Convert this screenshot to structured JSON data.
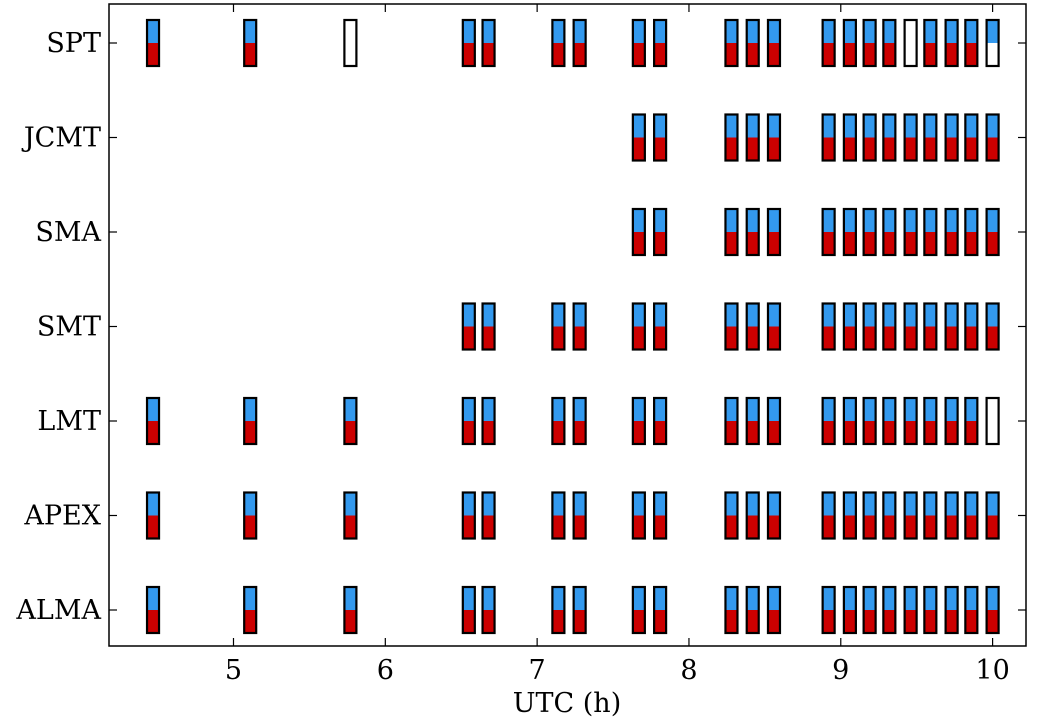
{
  "chart_data": {
    "type": "scan-availability",
    "title": "",
    "xlabel": "UTC (h)",
    "ylabel": "",
    "xlim": [
      4.18,
      10.22
    ],
    "xticks": [
      5,
      6,
      7,
      8,
      9,
      10
    ],
    "stations": [
      "ALMA",
      "APEX",
      "LMT",
      "SMT",
      "SMA",
      "JCMT",
      "SPT"
    ],
    "colors": {
      "upper": "#3399ee",
      "lower": "#cc0000",
      "empty": "#ffffff",
      "border": "#000000"
    },
    "scan_times": [
      4.47,
      5.11,
      5.77,
      6.55,
      6.68,
      7.14,
      7.28,
      7.67,
      7.81,
      8.28,
      8.42,
      8.56,
      8.92,
      9.06,
      9.19,
      9.32,
      9.46,
      9.59,
      9.73,
      9.86,
      10.0
    ],
    "scans": {
      "ALMA": [
        "full",
        "full",
        "full",
        "full",
        "full",
        "full",
        "full",
        "full",
        "full",
        "full",
        "full",
        "full",
        "full",
        "full",
        "full",
        "full",
        "full",
        "full",
        "full",
        "full",
        "full"
      ],
      "APEX": [
        "full",
        "full",
        "full",
        "full",
        "full",
        "full",
        "full",
        "full",
        "full",
        "full",
        "full",
        "full",
        "full",
        "full",
        "full",
        "full",
        "full",
        "full",
        "full",
        "full",
        "full"
      ],
      "LMT": [
        "full",
        "full",
        "full",
        "full",
        "full",
        "full",
        "full",
        "full",
        "full",
        "full",
        "full",
        "full",
        "full",
        "full",
        "full",
        "full",
        "full",
        "full",
        "full",
        "full",
        "empty"
      ],
      "SMT": [
        null,
        null,
        null,
        "full",
        "full",
        "full",
        "full",
        "full",
        "full",
        "full",
        "full",
        "full",
        "full",
        "full",
        "full",
        "full",
        "full",
        "full",
        "full",
        "full",
        "full"
      ],
      "SMA": [
        null,
        null,
        null,
        null,
        null,
        null,
        null,
        "full",
        "full",
        "full",
        "full",
        "full",
        "full",
        "full",
        "full",
        "full",
        "full",
        "full",
        "full",
        "full",
        "full"
      ],
      "JCMT": [
        null,
        null,
        null,
        null,
        null,
        null,
        null,
        "full",
        "full",
        "full",
        "full",
        "full",
        "full",
        "full",
        "full",
        "full",
        "full",
        "full",
        "full",
        "full",
        "full"
      ],
      "SPT": [
        "full",
        "full",
        "empty",
        "full",
        "full",
        "full",
        "full",
        "full",
        "full",
        "full",
        "full",
        "full",
        "full",
        "full",
        "full",
        "full",
        "empty",
        "full",
        "full",
        "full",
        "upper-only"
      ]
    }
  }
}
